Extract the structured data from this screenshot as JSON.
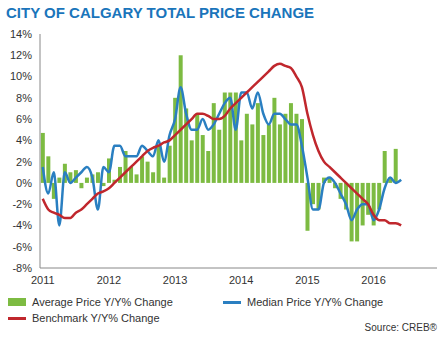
{
  "chart_data": {
    "type": "bar",
    "title": "CITY OF CALGARY TOTAL PRICE CHANGE",
    "source": "Source: CREB®",
    "categories": [
      "2011",
      null,
      null,
      null,
      null,
      null,
      null,
      null,
      null,
      null,
      null,
      null,
      "2012",
      null,
      null,
      null,
      null,
      null,
      null,
      null,
      null,
      null,
      null,
      null,
      "2013",
      null,
      null,
      null,
      null,
      null,
      null,
      null,
      null,
      null,
      null,
      null,
      "2014",
      null,
      null,
      null,
      null,
      null,
      null,
      null,
      null,
      null,
      null,
      null,
      "2015",
      null,
      null,
      null,
      null,
      null,
      null,
      null,
      null,
      null,
      null,
      null,
      "2016",
      null,
      null,
      null,
      null,
      null,
      null,
      null,
      null,
      null,
      null,
      null
    ],
    "series": [
      {
        "name": "Average Price Y/Y% Change",
        "type": "bar",
        "color": "#7dbb42",
        "values": [
          4.7,
          2.5,
          -1.5,
          0.5,
          1.8,
          1.0,
          1.2,
          -0.5,
          0.5,
          0.8,
          1.0,
          -0.3,
          2.3,
          0.3,
          1.5,
          3.0,
          1.5,
          0.8,
          2.5,
          2.0,
          1.0,
          3.5,
          0.5,
          3.5,
          8.0,
          12.0,
          7.0,
          4.0,
          6.5,
          4.5,
          3.0,
          7.5,
          5.0,
          8.5,
          8.5,
          8.5,
          4.0,
          6.5,
          5.5,
          7.5,
          4.5,
          5.5,
          8.0,
          5.5,
          6.5,
          7.5,
          6.5,
          6.0,
          -4.5,
          -2.0,
          -2.5,
          0.5,
          0.5,
          -0.5,
          -1.5,
          -2.5,
          -5.5,
          -5.5,
          -4.0,
          -3.0,
          -4.0,
          -2.5,
          3.0,
          0.5,
          3.2,
          0.0,
          null,
          null,
          null,
          null,
          null,
          null
        ]
      },
      {
        "name": "Median Price Y/Y% Change",
        "type": "line",
        "color": "#2a7fc1",
        "values": [
          1.5,
          -1.0,
          1.0,
          -4.0,
          1.0,
          0.0,
          0.5,
          1.0,
          1.5,
          0.5,
          -2.5,
          1.5,
          1.0,
          3.5,
          3.5,
          2.5,
          2.5,
          2.5,
          3.5,
          3.0,
          2.5,
          4.0,
          2.0,
          4.5,
          6.0,
          9.0,
          6.5,
          5.0,
          5.0,
          6.0,
          5.0,
          5.5,
          6.5,
          7.5,
          8.0,
          5.0,
          8.5,
          8.5,
          7.0,
          8.5,
          6.5,
          5.5,
          6.5,
          6.5,
          6.0,
          5.5,
          5.5,
          3.5,
          0.5,
          -2.5,
          -2.5,
          0.0,
          0.5,
          0.0,
          -1.0,
          -2.0,
          -3.5,
          -2.5,
          -2.0,
          -2.0,
          -3.5,
          -2.5,
          -0.5,
          0.5,
          0.0,
          0.3,
          null,
          null,
          null,
          null,
          null,
          null
        ]
      },
      {
        "name": "Benchmark Y/Y% Change",
        "type": "line",
        "color": "#c0272d",
        "values": [
          -1.5,
          -2.5,
          -2.8,
          -3.0,
          -3.3,
          -3.3,
          -2.8,
          -2.5,
          -2.0,
          -1.5,
          -1.0,
          -0.8,
          -0.5,
          0.0,
          0.5,
          1.0,
          1.5,
          2.0,
          2.5,
          3.0,
          3.3,
          3.5,
          3.8,
          4.0,
          4.5,
          5.0,
          5.5,
          6.0,
          6.5,
          6.5,
          6.3,
          6.0,
          6.0,
          6.3,
          7.0,
          7.5,
          8.0,
          8.5,
          9.0,
          9.5,
          10.0,
          10.5,
          11.0,
          11.2,
          11.0,
          10.8,
          10.0,
          9.0,
          6.5,
          4.5,
          3.0,
          2.0,
          1.5,
          1.0,
          0.5,
          0.0,
          -0.5,
          -1.0,
          -1.5,
          -2.0,
          -3.0,
          -3.5,
          -3.5,
          -3.8,
          -3.8,
          -4.0,
          null,
          null,
          null,
          null,
          null,
          null
        ]
      }
    ],
    "ylim": [
      -8,
      14
    ],
    "yticks": [
      {
        "value": -8,
        "label": "-8%"
      },
      {
        "value": -6,
        "label": "-6%"
      },
      {
        "value": -4,
        "label": "-4%"
      },
      {
        "value": -2,
        "label": "-2%"
      },
      {
        "value": 0,
        "label": "0%"
      },
      {
        "value": 2,
        "label": "2%"
      },
      {
        "value": 4,
        "label": "4%"
      },
      {
        "value": 6,
        "label": "6%"
      },
      {
        "value": 8,
        "label": "8%"
      },
      {
        "value": 10,
        "label": "10%"
      },
      {
        "value": 12,
        "label": "12%"
      },
      {
        "value": 14,
        "label": "14%"
      }
    ],
    "grid": false,
    "legend": "bottom"
  }
}
